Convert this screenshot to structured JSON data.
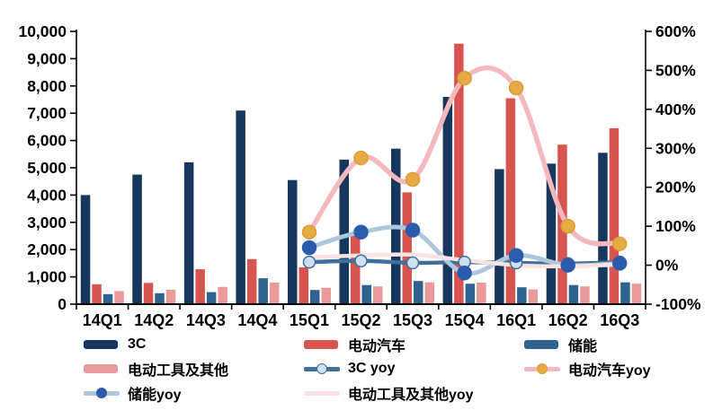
{
  "page": {
    "background": "#ffffff"
  },
  "chart_data": {
    "type": "bar",
    "subtype": "combo-bar-line",
    "categories": [
      "14Q1",
      "14Q2",
      "14Q3",
      "14Q4",
      "15Q1",
      "15Q2",
      "15Q3",
      "15Q4",
      "16Q1",
      "16Q2",
      "16Q3"
    ],
    "bar_series": [
      {
        "name": "3C",
        "color": "#17375d",
        "values": [
          4000,
          4750,
          5200,
          7100,
          4550,
          5300,
          5700,
          7600,
          4950,
          5150,
          5550
        ]
      },
      {
        "name": "电动汽车",
        "color": "#d85450",
        "values": [
          730,
          780,
          1280,
          1650,
          1350,
          2500,
          4100,
          9550,
          7550,
          5850,
          6450
        ]
      },
      {
        "name": "储能",
        "color": "#2e6390",
        "values": [
          370,
          400,
          440,
          950,
          520,
          700,
          850,
          750,
          620,
          700,
          800
        ]
      },
      {
        "name": "电动工具及其他",
        "color": "#eb9a9b",
        "values": [
          480,
          530,
          630,
          790,
          600,
          650,
          800,
          790,
          540,
          650,
          750
        ]
      }
    ],
    "line_series": [
      {
        "name": "3C yoy",
        "start_category": "15Q1",
        "start_index": 4,
        "line_color": "#3f6f9d",
        "line_width": 4.5,
        "marker_color": "#cfe0f0",
        "marker_border": "#3f6f9d",
        "marker_radius": 6.5,
        "values": [
          8,
          11,
          6,
          8,
          6,
          4,
          8
        ]
      },
      {
        "name": "储能yoy",
        "start_category": "15Q1",
        "start_index": 4,
        "line_color": "#abc8de",
        "line_width": 5,
        "marker_color": "#2b5cab",
        "marker_border": "#2b5cab",
        "marker_radius": 7.5,
        "values": [
          45,
          85,
          90,
          -20,
          25,
          0,
          5
        ]
      },
      {
        "name": "电动工具及其他yoy",
        "start_category": "15Q1",
        "start_index": 4,
        "line_color": "#fae3e1",
        "line_width": 4.5,
        "marker_color": null,
        "marker_border": null,
        "marker_radius": 0,
        "values": [
          20,
          25,
          27,
          13,
          0,
          -3,
          2
        ]
      },
      {
        "name": "电动汽车yoy",
        "start_category": "15Q1",
        "start_index": 4,
        "line_color": "#f5b8bd",
        "line_width": 5.5,
        "marker_color": "#e5ab44",
        "marker_border": "#dd9c33",
        "marker_radius": 7.5,
        "values": [
          85,
          275,
          220,
          480,
          455,
          100,
          55
        ]
      }
    ],
    "left_axis": {
      "min": 0,
      "max": 10000,
      "step": 1000,
      "tick_labels": [
        "0",
        "1,000",
        "2,000",
        "3,000",
        "4,000",
        "5,000",
        "6,000",
        "7,000",
        "8,000",
        "9,000",
        "10,000"
      ]
    },
    "right_axis": {
      "min": -100,
      "max": 600,
      "step": 100,
      "tick_labels": [
        "-100%",
        "0%",
        "100%",
        "200%",
        "300%",
        "400%",
        "500%",
        "600%"
      ]
    },
    "grid": false,
    "legend_position": "bottom",
    "axis_color": "#000000"
  },
  "legend": {
    "items": [
      {
        "label": "3C",
        "type": "bar",
        "color": "#17375d"
      },
      {
        "label": "电动汽车",
        "type": "bar",
        "color": "#d85450"
      },
      {
        "label": "储能",
        "type": "bar",
        "color": "#2e6390"
      },
      {
        "label": "电动工具及其他",
        "type": "bar",
        "color": "#eb9a9b"
      },
      {
        "label": "3C yoy",
        "type": "line-marker",
        "line": "#3f6f9d",
        "marker": "#cfe0f0",
        "marker_border": "#3f6f9d"
      },
      {
        "label": "电动汽车yoy",
        "type": "line-marker",
        "line": "#f5b8bd",
        "marker": "#e5ab44",
        "marker_border": "#dd9c33"
      },
      {
        "label": "储能yoy",
        "type": "line-marker",
        "line": "#abc8de",
        "marker": "#2b5cab",
        "marker_border": "#2b5cab"
      },
      {
        "label": "电动工具及其他yoy",
        "type": "line",
        "line": "#fae3e1"
      }
    ]
  }
}
